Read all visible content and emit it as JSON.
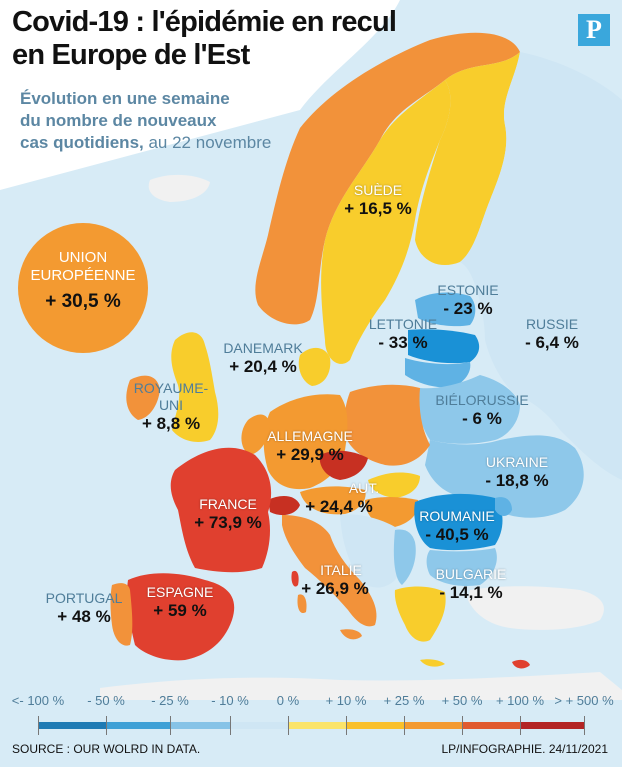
{
  "header": {
    "title_line1": "Covid-19 : l'épidémie en recul",
    "title_line2": "en Europe de l'Est",
    "subtitle_line1": "Évolution en une semaine",
    "subtitle_line2": "du nombre de nouveaux",
    "subtitle_line3_bold": "cas quotidiens,",
    "subtitle_line3_light": " au 22 novembre",
    "logo": "P"
  },
  "badge": {
    "name": "UNION EUROPÉENNE",
    "name_line1": "UNION",
    "name_line2": "EUROPÉENNE",
    "value": "+ 30,5 %",
    "color": "#f39a31"
  },
  "countries": {
    "suede": {
      "name": "SUÈDE",
      "value": "+ 16,5 %"
    },
    "estonie": {
      "name": "ESTONIE",
      "value": "- 23 %"
    },
    "lettonie": {
      "name": "LETTONIE",
      "value": "- 33 %"
    },
    "russie": {
      "name": "RUSSIE",
      "value": "- 6,4 %"
    },
    "danemark": {
      "name": "DANEMARK",
      "value": "+ 20,4 %"
    },
    "royaume_uni": {
      "name_line1": "ROYAUME-",
      "name_line2": "UNI",
      "value": "+ 8,8 %"
    },
    "bielorussie": {
      "name": "BIÉLORUSSIE",
      "value": "- 6 %"
    },
    "allemagne": {
      "name": "ALLEMAGNE",
      "value": "+ 29,9 %"
    },
    "ukraine": {
      "name": "UKRAINE",
      "value": "- 18,8 %"
    },
    "france": {
      "name": "FRANCE",
      "value": "+ 73,9 %"
    },
    "autriche": {
      "name": "AUT.",
      "value": "+ 24,4 %"
    },
    "roumanie": {
      "name": "ROUMANIE",
      "value": "- 40,5 %"
    },
    "italie": {
      "name": "ITALIE",
      "value": "+ 26,9 %"
    },
    "bulgarie": {
      "name": "BULGARIE",
      "value": "- 14,1 %"
    },
    "portugal": {
      "name": "PORTUGAL",
      "value": "+ 48 %"
    },
    "espagne": {
      "name": "ESPAGNE",
      "value": "+ 59 %"
    }
  },
  "legend": {
    "labels": [
      "<- 100 %",
      "- 50 %",
      "- 25 %",
      "- 10 %",
      "0 %",
      "+ 10 %",
      "+ 25 %",
      "+ 50 %",
      "+ 100 %",
      "> + 500 %"
    ],
    "colors": [
      "#1f7bb4",
      "#3ea0d6",
      "#86c3e7",
      "#cfe6f4",
      "#fbe46a",
      "#f9c02c",
      "#f39a31",
      "#e05a2f",
      "#b32424"
    ]
  },
  "footer": {
    "source": "SOURCE : OUR WOLRD IN DATA.",
    "credit": "LP/INFOGRAPHIE.  24/11/2021"
  },
  "map_colors": {
    "sea": "#d7ebf6",
    "land_other": "#f1f1f1",
    "nordic_orange": "#f2923a",
    "yellow": "#f8cd2c",
    "light_orange": "#f39a31",
    "red": "#e0402f",
    "light_blue": "#8ec8ea",
    "mid_blue": "#5fb2e4",
    "blue": "#1a91d6"
  }
}
